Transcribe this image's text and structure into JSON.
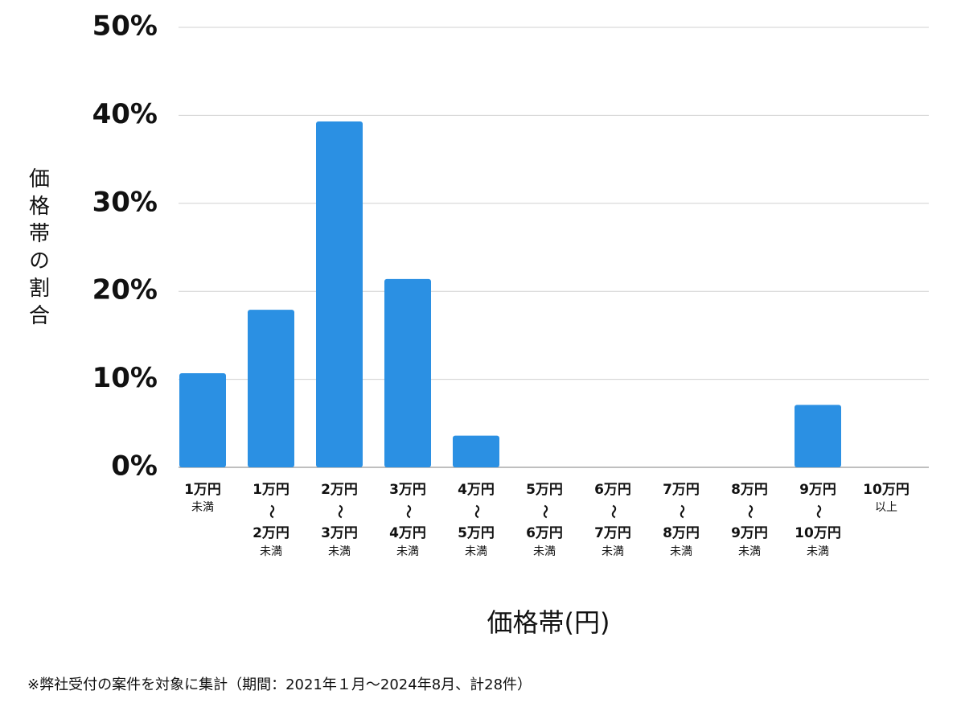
{
  "chart_data": {
    "type": "bar",
    "y_label": "価格帯の割合",
    "x_label": "価格帯(円)",
    "note": "※弊社受付の案件を対象に集計（期間：2021年１月〜2024年8月、計28件）",
    "categories": [
      [
        "1万円",
        "未満"
      ],
      [
        "1万円",
        "〜",
        "2万円",
        "未満"
      ],
      [
        "2万円",
        "〜",
        "3万円",
        "未満"
      ],
      [
        "3万円",
        "〜",
        "4万円",
        "未満"
      ],
      [
        "4万円",
        "〜",
        "5万円",
        "未満"
      ],
      [
        "5万円",
        "〜",
        "6万円",
        "未満"
      ],
      [
        "6万円",
        "〜",
        "7万円",
        "未満"
      ],
      [
        "7万円",
        "〜",
        "8万円",
        "未満"
      ],
      [
        "8万円",
        "〜",
        "9万円",
        "未満"
      ],
      [
        "9万円",
        "〜",
        "10万円",
        "未満"
      ],
      [
        "10万円",
        "以上"
      ]
    ],
    "values": [
      10.7,
      17.9,
      39.3,
      21.4,
      3.6,
      0,
      0,
      0,
      0,
      7.1,
      0
    ],
    "color": "#2b90e3",
    "ylim": [
      0,
      50
    ],
    "yticks": [
      {
        "value": 0,
        "label": "0%"
      },
      {
        "value": 10,
        "label": "10%"
      },
      {
        "value": 20,
        "label": "20%"
      },
      {
        "value": 30,
        "label": "30%"
      },
      {
        "value": 40,
        "label": "40%"
      },
      {
        "value": 50,
        "label": "50%"
      }
    ],
    "grid": true
  }
}
